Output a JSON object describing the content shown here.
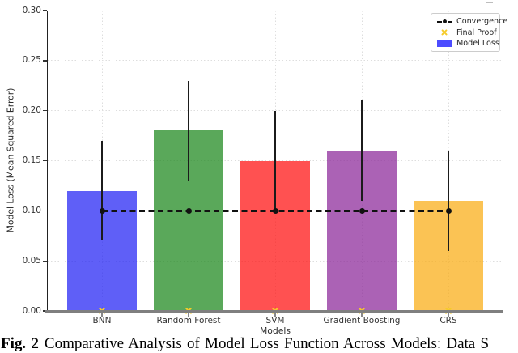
{
  "figure": {
    "caption_prefix": "Fig. 2",
    "caption_text": "Comparative Analysis of Model Loss Function Across Models: Data S"
  },
  "chart_data": {
    "type": "bar",
    "title": "",
    "xlabel": "Models",
    "ylabel": "Model Loss (Mean Squared Error)",
    "categories": [
      "BNN",
      "Random Forest",
      "SVM",
      "Gradient Boosting",
      "CRS"
    ],
    "series": [
      {
        "name": "Model Loss",
        "values": [
          0.12,
          0.18,
          0.15,
          0.16,
          0.11
        ]
      }
    ],
    "error_bars": [
      0.05,
      0.05,
      0.05,
      0.05,
      0.05
    ],
    "bar_colors": [
      "#2424f4",
      "#1d881d",
      "#ff1111",
      "#8c289a",
      "#faad15"
    ],
    "convergence_line": {
      "label": "Convergence",
      "y": 0.1,
      "color": "#111111",
      "style": "dashed-with-dots"
    },
    "final_proof_markers": {
      "label": "Final Proof",
      "y": [
        0,
        0,
        0,
        0,
        0
      ],
      "color": "#f5cb2a",
      "marker": "x"
    },
    "ylim": [
      0,
      0.3
    ],
    "yticks": [
      "0.00",
      "0.05",
      "0.10",
      "0.15",
      "0.20",
      "0.25",
      "0.30"
    ],
    "grid": true,
    "legend": {
      "position": "upper right",
      "items": [
        {
          "label": "Convergence",
          "type": "dashed-line-dot",
          "color": "#111111"
        },
        {
          "label": "Final Proof",
          "type": "x-marker",
          "color": "#f5cb2a"
        },
        {
          "label": "Model Loss",
          "type": "swatch",
          "color": "#4c4cff"
        }
      ]
    }
  }
}
